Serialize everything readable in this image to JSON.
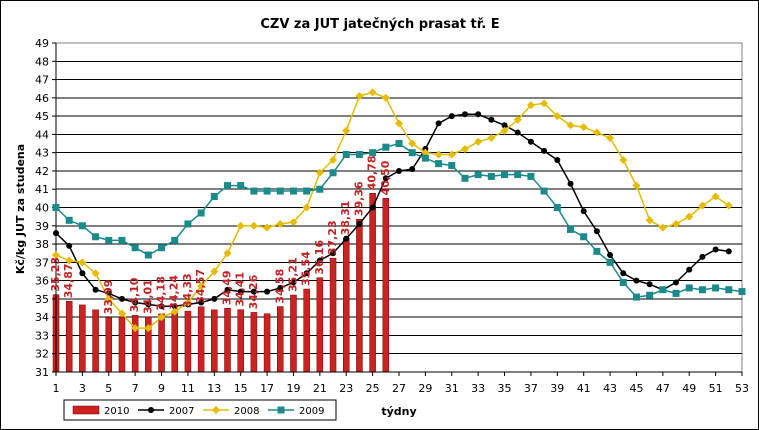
{
  "chart_data": {
    "type": "line",
    "title": "CZV za JUT jatečných prasat tř. E",
    "xlabel": "týdny",
    "ylabel": "Kč/kg JUT za studena",
    "ylim": [
      31,
      49
    ],
    "yticks": [
      31,
      32,
      33,
      34,
      35,
      36,
      37,
      38,
      39,
      40,
      41,
      42,
      43,
      44,
      45,
      46,
      47,
      48,
      49
    ],
    "xlim": [
      1,
      53
    ],
    "xticks": [
      1,
      3,
      5,
      7,
      9,
      11,
      13,
      15,
      17,
      19,
      21,
      23,
      25,
      27,
      29,
      31,
      33,
      35,
      37,
      39,
      41,
      43,
      45,
      47,
      49,
      51,
      53
    ],
    "grid": "horizontal",
    "legend_position": "bottom-left",
    "series": [
      {
        "name": "2010",
        "kind": "bar",
        "color": "#cc2222",
        "x": [
          1,
          2,
          3,
          4,
          5,
          6,
          7,
          8,
          9,
          10,
          11,
          12,
          13,
          14,
          15,
          16,
          17,
          18,
          19,
          20,
          21,
          22,
          23,
          24,
          25,
          26
        ],
        "values": [
          35.23,
          34.87,
          34.67,
          34.4,
          33.99,
          33.99,
          34.1,
          34.01,
          34.18,
          34.24,
          34.33,
          34.57,
          34.4,
          34.49,
          34.41,
          34.26,
          34.19,
          34.58,
          35.21,
          35.54,
          36.16,
          37.23,
          38.31,
          39.36,
          40.78,
          40.5
        ],
        "labels": [
          "35,23",
          "34,87",
          "",
          "",
          "33,99",
          "",
          "34,10",
          "34,01",
          "34,18",
          "34,24",
          "34,33",
          "34,57",
          "",
          "34,49",
          "34,41",
          "34,26",
          "",
          "34,58",
          "35,21",
          "35,54",
          "36,16",
          "37,23",
          "38,31",
          "39,36",
          "40,78",
          "40,50"
        ]
      },
      {
        "name": "2007",
        "kind": "line",
        "marker": "circle",
        "color": "#000000",
        "x": [
          1,
          2,
          3,
          4,
          5,
          6,
          7,
          8,
          9,
          10,
          11,
          12,
          13,
          14,
          15,
          16,
          17,
          18,
          19,
          20,
          21,
          22,
          23,
          24,
          25,
          26,
          27,
          28,
          29,
          30,
          31,
          32,
          33,
          34,
          35,
          36,
          37,
          38,
          39,
          40,
          41,
          42,
          43,
          44,
          45,
          46,
          47,
          48,
          49,
          50,
          51,
          52
        ],
        "values": [
          38.6,
          37.9,
          36.4,
          35.5,
          35.3,
          35.0,
          34.8,
          34.7,
          34.6,
          34.6,
          34.7,
          34.8,
          35.0,
          35.5,
          35.4,
          35.4,
          35.4,
          35.6,
          35.9,
          36.4,
          37.1,
          37.5,
          38.3,
          39.1,
          40.0,
          41.6,
          42.0,
          42.1,
          43.2,
          44.6,
          45.0,
          45.1,
          45.1,
          44.8,
          44.5,
          44.1,
          43.6,
          43.1,
          42.6,
          41.3,
          39.8,
          38.7,
          37.4,
          36.4,
          36.0,
          35.8,
          35.5,
          35.9,
          36.6,
          37.3,
          37.7,
          37.6
        ]
      },
      {
        "name": "2008",
        "kind": "line",
        "marker": "diamond",
        "color": "#e6bb00",
        "x": [
          1,
          2,
          3,
          4,
          5,
          6,
          7,
          8,
          9,
          10,
          11,
          12,
          13,
          14,
          15,
          16,
          17,
          18,
          19,
          20,
          21,
          22,
          23,
          24,
          25,
          26,
          27,
          28,
          29,
          30,
          31,
          32,
          33,
          34,
          35,
          36,
          37,
          38,
          39,
          40,
          41,
          42,
          43,
          44,
          45,
          46,
          47,
          48,
          49,
          50,
          51,
          52
        ],
        "values": [
          37.4,
          37.1,
          37.0,
          36.4,
          35.0,
          34.2,
          33.4,
          33.4,
          34.0,
          34.3,
          34.8,
          35.7,
          36.5,
          37.5,
          39.0,
          39.0,
          38.9,
          39.1,
          39.2,
          40.0,
          41.9,
          42.6,
          44.2,
          46.1,
          46.3,
          46.0,
          44.6,
          43.5,
          43.0,
          42.9,
          42.9,
          43.2,
          43.6,
          43.8,
          44.2,
          44.8,
          45.6,
          45.7,
          45.0,
          44.5,
          44.4,
          44.1,
          43.8,
          42.6,
          41.2,
          39.3,
          38.9,
          39.1,
          39.5,
          40.1,
          40.6,
          40.1
        ]
      },
      {
        "name": "2009",
        "kind": "line",
        "marker": "square",
        "color": "#1a8a8a",
        "x": [
          1,
          2,
          3,
          4,
          5,
          6,
          7,
          8,
          9,
          10,
          11,
          12,
          13,
          14,
          15,
          16,
          17,
          18,
          19,
          20,
          21,
          22,
          23,
          24,
          25,
          26,
          27,
          28,
          29,
          30,
          31,
          32,
          33,
          34,
          35,
          36,
          37,
          38,
          39,
          40,
          41,
          42,
          43,
          44,
          45,
          46,
          47,
          48,
          49,
          50,
          51,
          52,
          53
        ],
        "values": [
          40.0,
          39.3,
          39.0,
          38.4,
          38.2,
          38.2,
          37.8,
          37.4,
          37.8,
          38.2,
          39.1,
          39.7,
          40.6,
          41.2,
          41.2,
          40.9,
          40.9,
          40.9,
          40.9,
          40.9,
          41.0,
          41.9,
          42.9,
          42.9,
          43.0,
          43.3,
          43.5,
          43.0,
          42.7,
          42.4,
          42.3,
          41.6,
          41.8,
          41.7,
          41.8,
          41.8,
          41.7,
          40.9,
          40.0,
          38.8,
          38.4,
          37.6,
          37.0,
          35.9,
          35.1,
          35.2,
          35.5,
          35.3,
          35.6,
          35.5,
          35.6,
          35.5,
          35.4
        ]
      }
    ]
  }
}
